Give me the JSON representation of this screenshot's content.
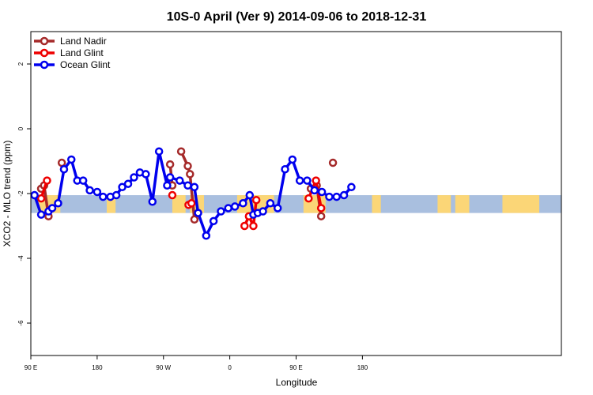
{
  "chart_data": {
    "type": "line",
    "title": "10S-0 April (Ver 9)   2014-09-06 to 2018-12-31",
    "xlabel": "Longitude",
    "ylabel": "XCO2 - MLO trend (ppm)",
    "xlim": [
      90,
      450
    ],
    "ylim": [
      -7,
      3
    ],
    "x_ticks": [
      {
        "value": 90,
        "label": "90 E"
      },
      {
        "value": 180,
        "label": "180"
      },
      {
        "value": 270,
        "label": "90 W"
      },
      {
        "value": 360,
        "label": "0"
      },
      {
        "value": 450,
        "label": "90 E"
      },
      {
        "value": 540,
        "label": "180"
      }
    ],
    "y_ticks": [
      {
        "value": 2,
        "label": "2"
      },
      {
        "value": 0,
        "label": "0"
      },
      {
        "value": -2,
        "label": "-2"
      },
      {
        "value": -4,
        "label": "-4"
      },
      {
        "value": -6,
        "label": "-6"
      }
    ],
    "band": {
      "ymin": -2.6,
      "ymax": -2.05,
      "ocean_color": "#a9bfdf",
      "land_color": "#fbd677"
    },
    "land_segments": [
      [
        100,
        130
      ],
      [
        193,
        205
      ],
      [
        282,
        300
      ],
      [
        306,
        325
      ],
      [
        370,
        420
      ]
    ],
    "legend": {
      "position": "top-left"
    },
    "series": [
      {
        "name": "Land Nadir",
        "color": "#a52a2a",
        "segments": [
          {
            "x": [
              104,
              108,
              114
            ],
            "y": [
              -1.85,
              -1.75,
              -2.7
            ]
          },
          {
            "x": [
              132
            ],
            "y": [
              -1.05
            ]
          },
          {
            "x": [
              279,
              282
            ],
            "y": [
              -1.1,
              -1.75
            ]
          },
          {
            "x": [
              294,
              303,
              306,
              312
            ],
            "y": [
              -0.7,
              -1.15,
              -1.4,
              -2.8
            ]
          },
          {
            "x": [
              470,
              478,
              484
            ],
            "y": [
              -1.85,
              -1.75,
              -2.7
            ]
          },
          {
            "x": [
              500
            ],
            "y": [
              -1.05
            ]
          }
        ]
      },
      {
        "name": "Land Glint",
        "color": "#ee0000",
        "segments": [
          {
            "x": [
              104,
              112
            ],
            "y": [
              -2.15,
              -1.6
            ]
          },
          {
            "x": [
              282
            ],
            "y": [
              -2.05
            ]
          },
          {
            "x": [
              304,
              308
            ],
            "y": [
              -2.35,
              -2.3
            ]
          },
          {
            "x": [
              380,
              386,
              392,
              396
            ],
            "y": [
              -3.0,
              -2.7,
              -3.0,
              -2.2
            ]
          },
          {
            "x": [
              467,
              477,
              484
            ],
            "y": [
              -2.15,
              -1.6,
              -2.45
            ]
          }
        ]
      },
      {
        "name": "Ocean Glint",
        "color": "#0000ee",
        "segments": [
          {
            "x": [
              95,
              104,
              114,
              119,
              127,
              135,
              145,
              153,
              161,
              170,
              180,
              188,
              198,
              206,
              214,
              222,
              230,
              238,
              246,
              255,
              264,
              275,
              279,
              292,
              303,
              312,
              317,
              328,
              338,
              348,
              358,
              367,
              378,
              387,
              392,
              398,
              405,
              415,
              425,
              435,
              445,
              455,
              465,
              475,
              485,
              495,
              505,
              515,
              525
            ],
            "y": [
              -2.05,
              -2.65,
              -2.55,
              -2.45,
              -2.3,
              -1.25,
              -0.95,
              -1.6,
              -1.6,
              -1.9,
              -1.95,
              -2.1,
              -2.1,
              -2.05,
              -1.8,
              -1.7,
              -1.5,
              -1.35,
              -1.4,
              -2.25,
              -0.7,
              -1.75,
              -1.5,
              -1.6,
              -1.75,
              -1.8,
              -2.6,
              -3.3,
              -2.85,
              -2.55,
              -2.45,
              -2.4,
              -2.3,
              -2.05,
              -2.65,
              -2.6,
              -2.55,
              -2.3,
              -2.45,
              -1.25,
              -0.95,
              -1.6,
              -1.6,
              -1.9,
              -1.95,
              -2.1,
              -2.1,
              -2.05,
              -1.8
            ]
          }
        ]
      }
    ]
  }
}
